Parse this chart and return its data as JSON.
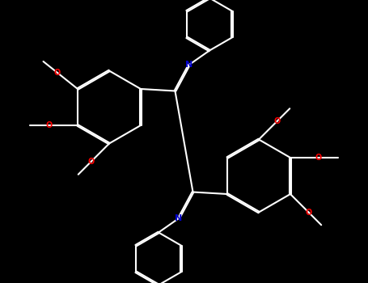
{
  "background": "#000000",
  "bond_color": "#ffffff",
  "N_color": "#0000cd",
  "O_color": "#ff0000",
  "lw": 1.5,
  "dbl_off": 0.018,
  "figsize": [
    4.55,
    3.5
  ],
  "dpi": 100,
  "xlim": [
    -4.5,
    4.5
  ],
  "ylim": [
    -3.5,
    3.5
  ]
}
